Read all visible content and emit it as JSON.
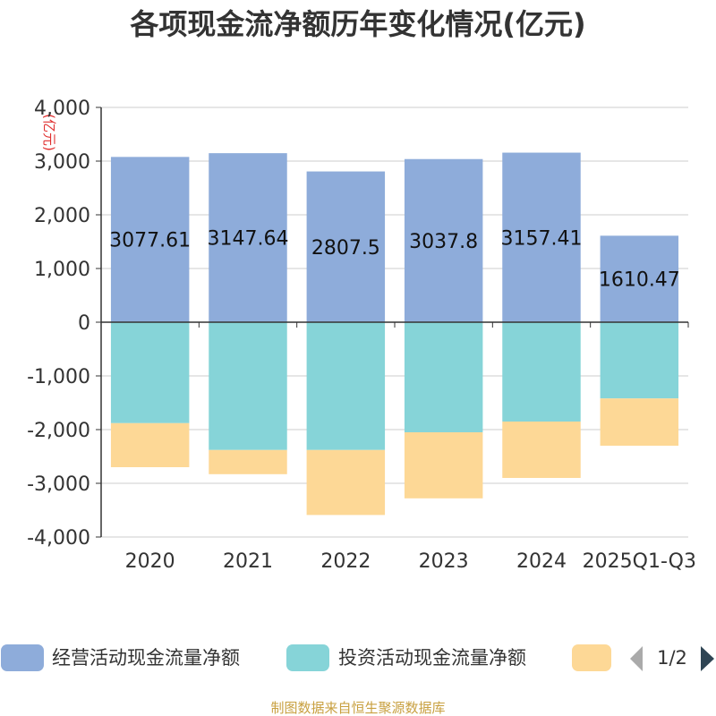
{
  "chart_data": {
    "type": "bar",
    "stacked": true,
    "title": "各项现金流净额历年变化情况(亿元)",
    "ylabel": "(亿元)",
    "xlabel": "",
    "ylim": [
      -4000,
      4000
    ],
    "y_ticks": [
      4000,
      3000,
      2000,
      1000,
      0,
      -1000,
      -2000,
      -3000,
      -4000
    ],
    "y_tick_labels": [
      "4,000",
      "3,000",
      "2,000",
      "1,000",
      "0",
      "-1,000",
      "-2,000",
      "-3,000",
      "-4,000"
    ],
    "grid": true,
    "categories": [
      "2020",
      "2021",
      "2022",
      "2023",
      "2024",
      "2025Q1-Q3"
    ],
    "series": [
      {
        "name": "经营活动现金流量净额",
        "color": "#8eacda",
        "values": [
          3077.61,
          3147.64,
          2807.5,
          3037.8,
          3157.41,
          1610.47
        ],
        "labels": [
          "3077.61",
          "3147.64",
          "2807.5",
          "3037.8",
          "3157.41",
          "1610.47"
        ]
      },
      {
        "name": "投资活动现金流量净额",
        "color": "#86d4d8",
        "values": [
          -1880,
          -2380,
          -2380,
          -2050,
          -1850,
          -1420
        ]
      },
      {
        "name": "",
        "color": "#fdd896",
        "values": [
          -820,
          -450,
          -1210,
          -1230,
          -1050,
          -880
        ]
      }
    ],
    "legend": {
      "position": "bottom",
      "page": "1/2"
    },
    "source": "制图数据来自恒生聚源数据库"
  }
}
